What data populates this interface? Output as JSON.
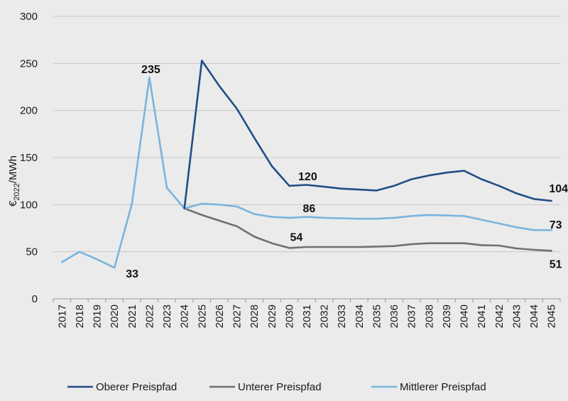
{
  "chart_data": {
    "type": "line",
    "title": "",
    "xlabel": "",
    "ylabel": "€2022/MWh",
    "ylabel_parts": {
      "prefix": "€",
      "sub": "2022",
      "suffix": "/MWh"
    },
    "ylim": [
      0,
      300
    ],
    "yticks": [
      "0",
      "50",
      "100",
      "150",
      "200",
      "250",
      "300"
    ],
    "grid": "horizontal",
    "legend_position": "bottom",
    "x": [
      2017,
      2018,
      2019,
      2020,
      2021,
      2022,
      2023,
      2024,
      2025,
      2026,
      2027,
      2028,
      2029,
      2030,
      2031,
      2032,
      2033,
      2034,
      2035,
      2036,
      2037,
      2038,
      2039,
      2040,
      2041,
      2042,
      2043,
      2044,
      2045
    ],
    "series": [
      {
        "name": "Oberer Preispfad",
        "color": "#1f4e86",
        "x": [
          2024,
          2025,
          2026,
          2027,
          2028,
          2029,
          2030,
          2031,
          2032,
          2033,
          2034,
          2035,
          2036,
          2037,
          2038,
          2039,
          2040,
          2041,
          2042,
          2043,
          2044,
          2045
        ],
        "values": [
          96,
          253,
          226,
          202,
          171,
          141,
          120,
          121,
          119,
          117,
          116,
          115,
          120,
          127,
          131,
          134,
          136,
          127,
          120,
          112,
          106,
          104
        ]
      },
      {
        "name": "Unterer Preispfad",
        "color": "#707070",
        "x": [
          2024,
          2025,
          2026,
          2027,
          2028,
          2029,
          2030,
          2031,
          2032,
          2033,
          2034,
          2035,
          2036,
          2037,
          2038,
          2039,
          2040,
          2041,
          2042,
          2043,
          2044,
          2045
        ],
        "values": [
          96,
          89,
          83,
          77,
          66,
          59,
          54,
          55,
          55,
          55,
          55,
          55.5,
          56,
          58,
          59,
          59,
          59,
          57,
          56.5,
          53.5,
          52,
          51
        ]
      },
      {
        "name": "Mittlerer Preispfad",
        "color": "#7ab4de",
        "x": [
          2017,
          2018,
          2019,
          2020,
          2021,
          2022,
          2023,
          2024,
          2025,
          2026,
          2027,
          2028,
          2029,
          2030,
          2031,
          2032,
          2033,
          2034,
          2035,
          2036,
          2037,
          2038,
          2039,
          2040,
          2041,
          2042,
          2043,
          2044,
          2045
        ],
        "values": [
          39,
          50,
          42,
          33,
          101,
          235,
          118,
          96,
          101,
          100,
          98,
          90,
          87,
          86,
          87,
          86,
          85.5,
          85,
          85,
          86,
          88,
          89,
          88.5,
          88,
          84,
          80,
          76,
          73,
          73
        ]
      }
    ],
    "annotations": [
      {
        "text": "235",
        "x": 2022,
        "y": 235
      },
      {
        "text": "33",
        "x": 2020,
        "y": 33
      },
      {
        "text": "120",
        "x": 2030,
        "y": 120
      },
      {
        "text": "86",
        "x": 2030,
        "y": 86
      },
      {
        "text": "54",
        "x": 2030,
        "y": 54
      },
      {
        "text": "104",
        "x": 2045,
        "y": 104
      },
      {
        "text": "73",
        "x": 2045,
        "y": 73
      },
      {
        "text": "51",
        "x": 2045,
        "y": 51
      }
    ]
  }
}
